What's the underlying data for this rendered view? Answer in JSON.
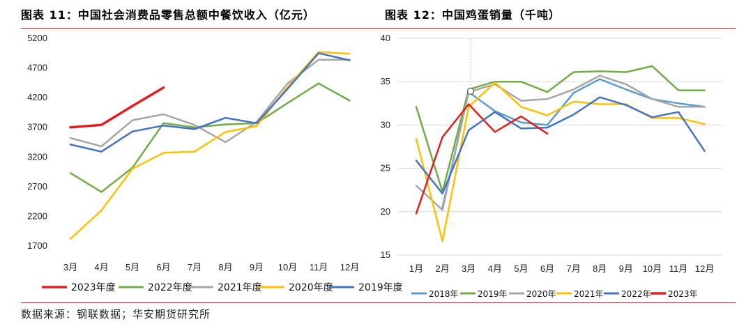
{
  "charts": {
    "left": {
      "title": "图表 11：中国社会消费品零售总额中餐饮收入（亿元）"
    },
    "right": {
      "title": "图表 12：中国鸡蛋销量（千吨）"
    }
  },
  "source": "数据来源：钢联数据；华安期货研究所",
  "chart_data": [
    {
      "type": "line",
      "title": "图表 11：中国社会消费品零售总额中餐饮收入（亿元）",
      "categories": [
        "3月",
        "4月",
        "5月",
        "6月",
        "7月",
        "8月",
        "9月",
        "10月",
        "11月",
        "12月"
      ],
      "ylim": [
        1700,
        5200
      ],
      "yticks": [
        1700,
        2200,
        2700,
        3200,
        3700,
        4200,
        4700,
        5200
      ],
      "legend_position": "bottom",
      "series": [
        {
          "name": "2023年度",
          "color": "#e02020",
          "width": 3.5,
          "values": [
            3700,
            3740,
            4060,
            4370,
            null,
            null,
            null,
            null,
            null,
            null
          ]
        },
        {
          "name": "2022年度",
          "color": "#70ad47",
          "width": 2.5,
          "values": [
            2930,
            2610,
            3020,
            3770,
            3700,
            3750,
            3770,
            4110,
            4440,
            4150
          ]
        },
        {
          "name": "2021年度",
          "color": "#a6a6a6",
          "width": 2.5,
          "values": [
            3520,
            3380,
            3820,
            3920,
            3740,
            3450,
            3790,
            4440,
            4840,
            4840
          ]
        },
        {
          "name": "2020年度",
          "color": "#ffc000",
          "width": 2.5,
          "values": [
            1820,
            2300,
            3000,
            3270,
            3290,
            3620,
            3720,
            4380,
            4970,
            4940
          ]
        },
        {
          "name": "2019年度",
          "color": "#4472c4",
          "width": 2.5,
          "values": [
            3410,
            3290,
            3630,
            3730,
            3670,
            3860,
            3770,
            4350,
            4950,
            4830
          ]
        }
      ]
    },
    {
      "type": "line",
      "title": "图表 12：中国鸡蛋销量（千吨）",
      "categories": [
        "1月",
        "2月",
        "3月",
        "4月",
        "5月",
        "6月",
        "7月",
        "8月",
        "9月",
        "10月",
        "11月",
        "12月"
      ],
      "ylim": [
        15,
        40
      ],
      "yticks": [
        15,
        20,
        25,
        30,
        35,
        40
      ],
      "legend_position": "bottom",
      "series": [
        {
          "name": "2018年",
          "color": "#5b9bd5",
          "width": 2.5,
          "values": [
            null,
            20.5,
            33.8,
            31.6,
            30.3,
            30.0,
            33.7,
            35.3,
            34.1,
            33.0,
            32.5,
            32.1
          ]
        },
        {
          "name": "2019年",
          "color": "#70ad47",
          "width": 2.5,
          "values": [
            32.1,
            22.3,
            34.1,
            35.0,
            35.0,
            33.8,
            36.1,
            36.2,
            36.1,
            36.8,
            34.0,
            34.0
          ]
        },
        {
          "name": "2020年",
          "color": "#a6a6a6",
          "width": 2.5,
          "values": [
            23.0,
            20.2,
            33.8,
            34.7,
            32.8,
            33.0,
            34.1,
            35.7,
            34.7,
            33.0,
            32.1,
            32.1
          ]
        },
        {
          "name": "2021年",
          "color": "#ffc000",
          "width": 2.5,
          "values": [
            28.4,
            16.6,
            32.1,
            34.9,
            32.1,
            31.1,
            32.7,
            32.4,
            32.4,
            30.8,
            30.8,
            30.1
          ]
        },
        {
          "name": "2022年",
          "color": "#4472c4",
          "width": 2.5,
          "values": [
            25.9,
            22.1,
            29.4,
            31.5,
            29.6,
            29.7,
            31.2,
            33.2,
            32.3,
            30.9,
            31.5,
            27.0
          ]
        },
        {
          "name": "2023年",
          "color": "#e02020",
          "width": 2.5,
          "values": [
            19.8,
            28.6,
            32.4,
            29.2,
            31.0,
            29.0,
            null,
            null,
            null,
            null,
            null,
            null
          ]
        }
      ]
    }
  ]
}
